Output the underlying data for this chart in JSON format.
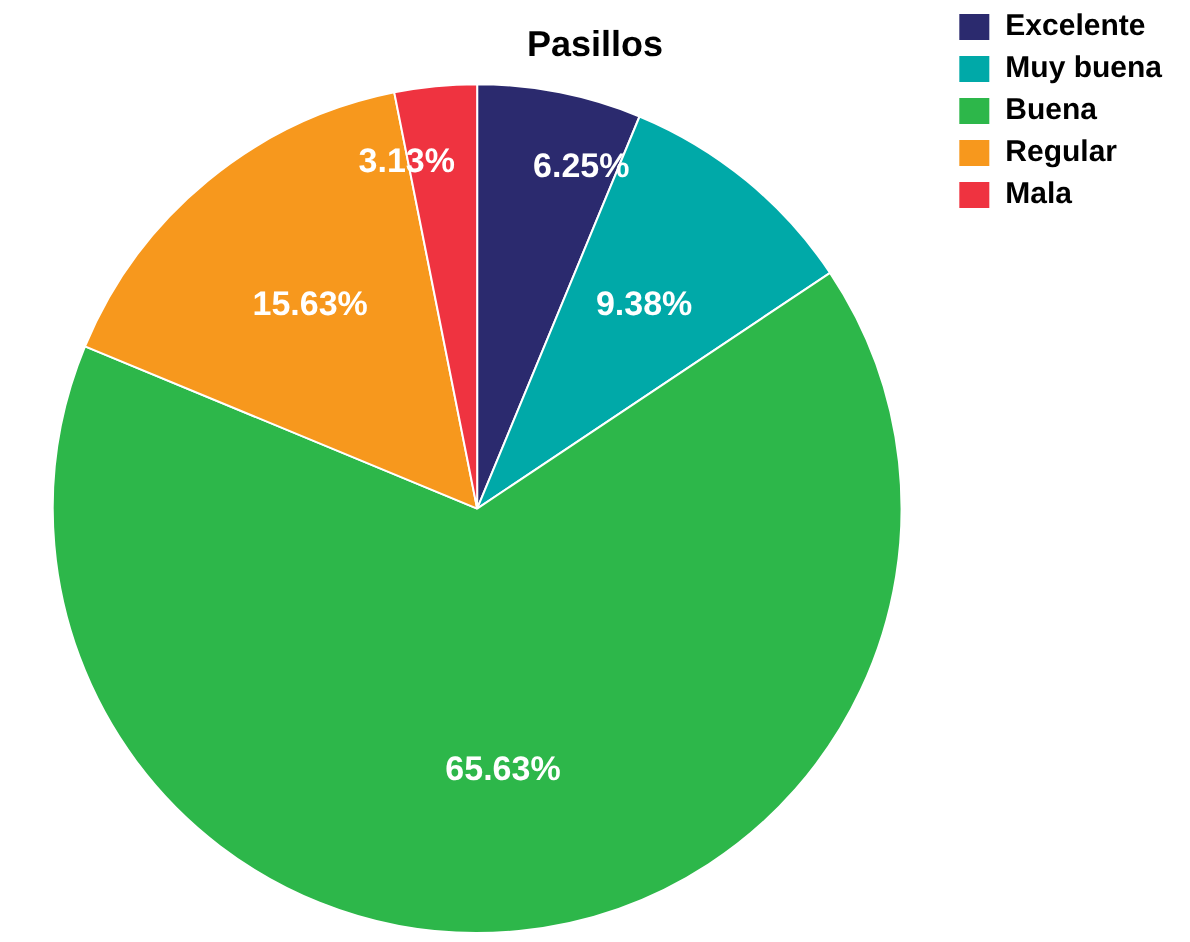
{
  "chart_data": {
    "type": "pie",
    "title": "Pasillos",
    "categories": [
      "Excelente",
      "Muy buena",
      "Buena",
      "Regular",
      "Mala"
    ],
    "values": [
      6.25,
      9.38,
      65.63,
      15.63,
      3.13
    ],
    "colors": [
      "#2b2a6e",
      "#00a9a8",
      "#2db74a",
      "#f7981d",
      "#ef3340"
    ],
    "value_labels": [
      "6.25%",
      "9.38%",
      "65.63%",
      "15.63%",
      "3.13%"
    ],
    "legend": "top right"
  }
}
